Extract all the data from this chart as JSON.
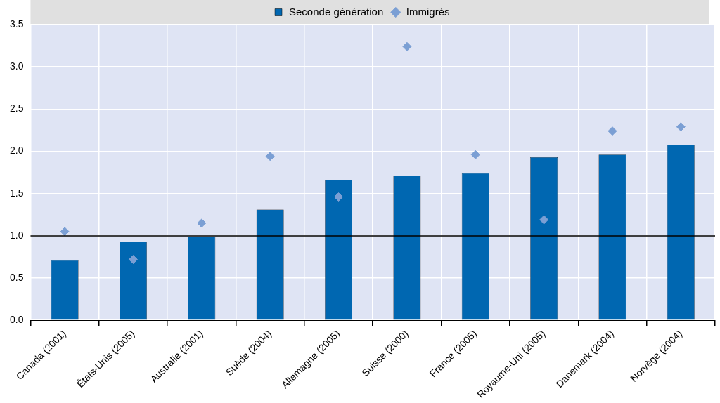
{
  "chart_data": {
    "type": "bar",
    "categories": [
      "Canada (2001)",
      "États-Unis (2005)",
      "Australie (2001)",
      "Suède (2004)",
      "Allemagne (2005)",
      "Suisse (2000)",
      "France (2005)",
      "Royaume-Uni (2005)",
      "Danemark (2004)",
      "Norvège (2004)"
    ],
    "series": [
      {
        "name": "Seconde génération",
        "color": "#0067b1",
        "values": [
          0.71,
          0.93,
          0.99,
          1.31,
          1.66,
          1.71,
          1.74,
          1.93,
          1.96,
          2.08
        ]
      },
      {
        "name": "Immigrés",
        "type": "scatter",
        "color": "#7b9fd4",
        "values": [
          1.05,
          0.72,
          1.15,
          1.94,
          1.46,
          3.24,
          1.96,
          1.19,
          2.24,
          2.29
        ]
      }
    ],
    "ylim": [
      0,
      3.5
    ],
    "yticks": [
      {
        "value": 0,
        "label": "0.0"
      },
      {
        "value": 0.5,
        "label": "0.5"
      },
      {
        "value": 1,
        "label": "1.0"
      },
      {
        "value": 1.5,
        "label": "1.5"
      },
      {
        "value": 2,
        "label": "2.0"
      },
      {
        "value": 2.5,
        "label": "2.5"
      },
      {
        "value": 3,
        "label": "3.0"
      },
      {
        "value": 3.5,
        "label": "3.5"
      }
    ],
    "ref_lines": [
      {
        "axis": "y",
        "value": 1,
        "color": "#000000"
      }
    ],
    "grid": true,
    "legend": "top",
    "marker": "diamond"
  }
}
